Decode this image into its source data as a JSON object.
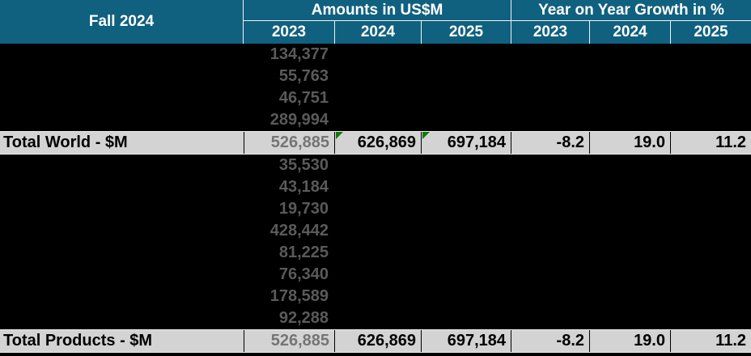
{
  "header": {
    "title": "Fall 2024",
    "groups": {
      "amounts": {
        "label": "Amounts in US$M",
        "years": [
          "2023",
          "2024",
          "2025"
        ]
      },
      "growth": {
        "label": "Year on Year Growth in %",
        "years": [
          "2023",
          "2024",
          "2025"
        ]
      }
    }
  },
  "table": {
    "rows_above_total_world": {
      "amounts_2023": [
        "134,377",
        "55,763",
        "46,751",
        "289,994"
      ]
    },
    "total_world": {
      "label": "Total World - $M",
      "amounts": {
        "y2023": "526,885",
        "y2024": "626,869",
        "y2025": "697,184"
      },
      "growth": {
        "y2023": "-8.2",
        "y2024": "19.0",
        "y2025": "11.2"
      },
      "error_indicator_cells": [
        "amount 2024",
        "amount 2025"
      ]
    },
    "rows_above_total_products": {
      "amounts_2023": [
        "35,530",
        "43,184",
        "19,730",
        "428,442",
        "81,225",
        "76,340",
        "178,589",
        "92,288"
      ]
    },
    "total_products": {
      "label": "Total Products - $M",
      "amounts": {
        "y2023": "526,885",
        "y2024": "626,869",
        "y2025": "697,184"
      },
      "growth": {
        "y2023": "-8.2",
        "y2024": "19.0",
        "y2025": "11.2"
      }
    }
  },
  "colors": {
    "header_bg": "#10607F",
    "header_text": "#FFFFFF",
    "sheet_bg": "#000000",
    "total_row_bg": "#D3D3D3",
    "muted_number_on_black": "#5A5A5A",
    "muted_number_on_gray": "#757575",
    "total_number": "#000000",
    "error_triangle_green": "#0B7A0B"
  }
}
